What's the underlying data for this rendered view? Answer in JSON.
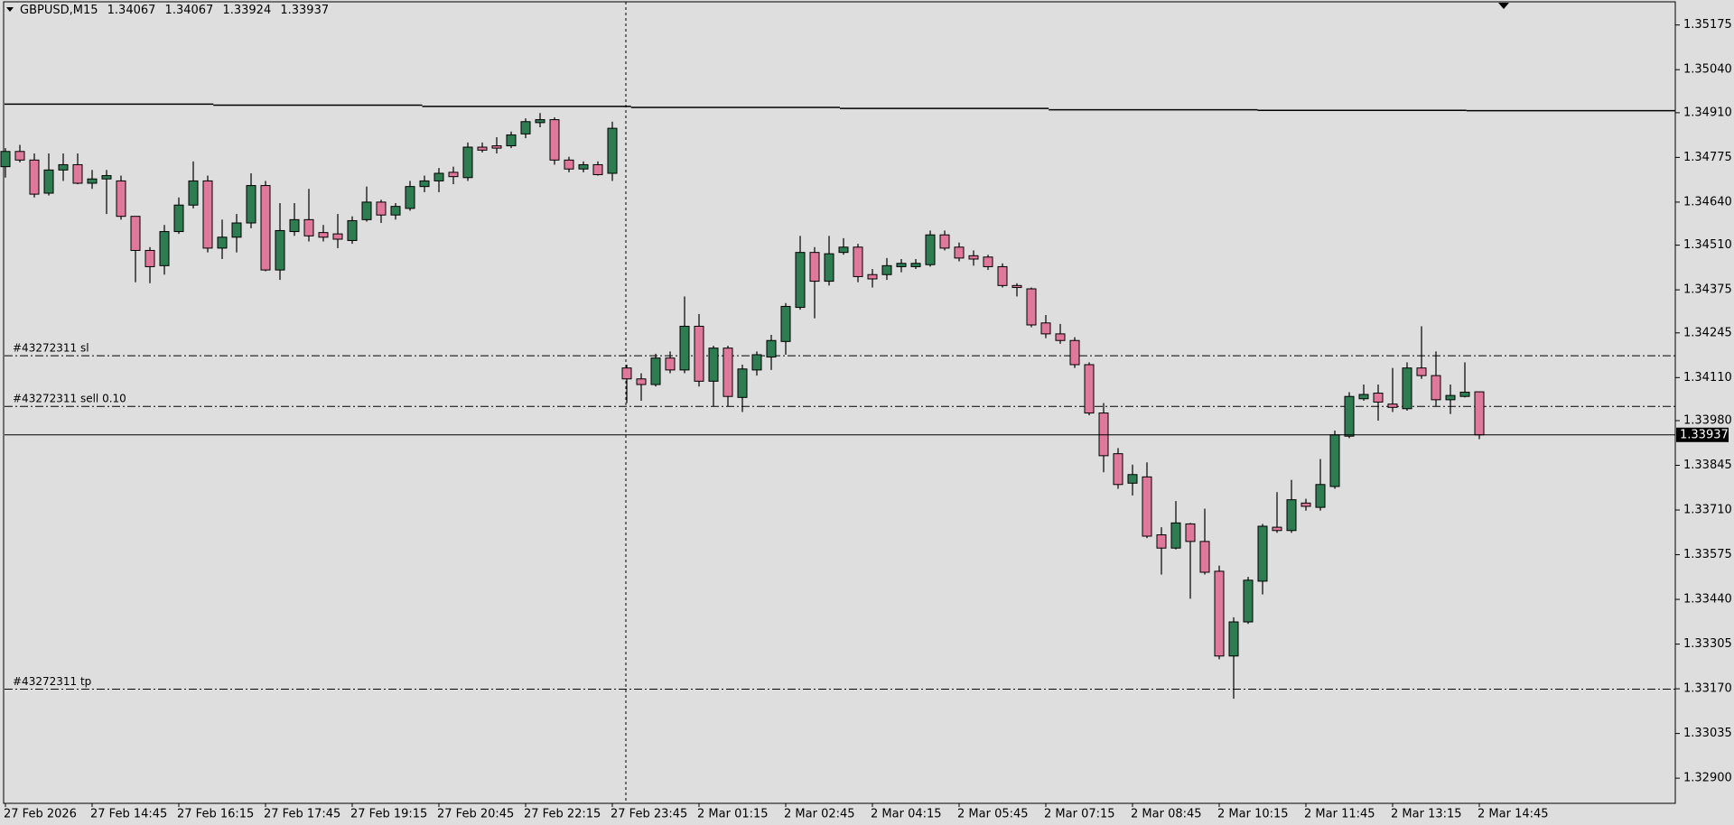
{
  "chart_data": {
    "type": "candlestick",
    "symbol": "GBPUSD,M15",
    "categories": [
      "27 Feb 2026",
      null,
      null,
      null,
      null,
      null,
      "27 Feb 14:45",
      null,
      null,
      null,
      null,
      null,
      "27 Feb 16:15",
      null,
      null,
      null,
      null,
      null,
      "27 Feb 17:45",
      null,
      null,
      null,
      null,
      null,
      "27 Feb 19:15",
      null,
      null,
      null,
      null,
      null,
      "27 Feb 20:45",
      null,
      null,
      null,
      null,
      null,
      "27 Feb 22:15",
      null,
      null,
      null,
      null,
      null,
      "27 Feb 23:45",
      null,
      null,
      null,
      null,
      null,
      "2 Mar 01:15",
      null,
      null,
      null,
      null,
      null,
      "2 Mar 02:45",
      null,
      null,
      null,
      null,
      null,
      "2 Mar 04:15",
      null,
      null,
      null,
      null,
      null,
      "2 Mar 05:45",
      null,
      null,
      null,
      null,
      null,
      "2 Mar 07:15",
      null,
      null,
      null,
      null,
      null,
      "2 Mar 08:45",
      null,
      null,
      null,
      null,
      null,
      "2 Mar 10:15",
      null,
      null,
      null,
      null,
      null,
      "2 Mar 11:45",
      null,
      null,
      null,
      null,
      null,
      "2 Mar 13:15",
      null,
      null,
      null,
      null,
      null,
      "2 Mar 14:45"
    ],
    "open": [
      1.34747,
      1.34793,
      1.34767,
      1.34667,
      1.34737,
      1.34753,
      1.34697,
      1.3471,
      1.34704,
      1.34597,
      1.34494,
      1.34448,
      1.34551,
      1.34631,
      1.34704,
      1.34501,
      1.34534,
      1.34577,
      1.3469,
      1.34435,
      1.34551,
      1.34587,
      1.34548,
      1.34544,
      1.34524,
      1.34587,
      1.3464,
      1.34601,
      1.34621,
      1.34687,
      1.34704,
      1.3473,
      1.34714,
      1.34806,
      1.3481,
      1.3481,
      1.34846,
      1.3488,
      1.34889,
      1.34767,
      1.3474,
      1.34753,
      1.34727,
      1.34139,
      1.34106,
      1.34089,
      1.34169,
      1.34133,
      1.34265,
      1.34099,
      1.34199,
      1.3405,
      1.34133,
      1.34172,
      1.34219,
      1.34322,
      1.34488,
      1.34401,
      1.34488,
      1.34504,
      1.34421,
      1.34421,
      1.34445,
      1.34445,
      1.34451,
      1.34541,
      1.34504,
      1.34478,
      1.34474,
      1.34445,
      1.34388,
      1.34378,
      1.34275,
      1.34242,
      1.34222,
      1.34149,
      1.34003,
      1.3388,
      1.33791,
      1.3381,
      1.33635,
      1.33595,
      1.33668,
      1.33615,
      1.33525,
      1.33269,
      1.33372,
      1.33495,
      1.33658,
      1.33648,
      1.33731,
      1.33718,
      1.33781,
      1.33933,
      1.34046,
      1.34063,
      1.3403,
      1.34016,
      1.34139,
      1.34116,
      1.34043,
      1.34053,
      1.34067
    ],
    "high": [
      1.34803,
      1.34813,
      1.34787,
      1.34787,
      1.34787,
      1.34787,
      1.34737,
      1.34737,
      1.3472,
      1.34597,
      1.34504,
      1.34571,
      1.34654,
      1.34763,
      1.3472,
      1.34587,
      1.34604,
      1.34727,
      1.34704,
      1.34637,
      1.34637,
      1.3468,
      1.34571,
      1.34604,
      1.34597,
      1.34687,
      1.34647,
      1.34637,
      1.34704,
      1.3472,
      1.34743,
      1.34747,
      1.3482,
      1.3482,
      1.34836,
      1.34853,
      1.34893,
      1.34909,
      1.34896,
      1.34777,
      1.34763,
      1.34763,
      1.34883,
      1.34149,
      1.34123,
      1.34182,
      1.34189,
      1.34355,
      1.34302,
      1.34206,
      1.34206,
      1.34149,
      1.34189,
      1.34239,
      1.34335,
      1.34538,
      1.34504,
      1.34538,
      1.34531,
      1.34514,
      1.34438,
      1.34471,
      1.34468,
      1.34468,
      1.34554,
      1.34554,
      1.34518,
      1.34494,
      1.34481,
      1.34455,
      1.34395,
      1.34382,
      1.34299,
      1.34272,
      1.34232,
      1.34156,
      1.34033,
      1.33897,
      1.33847,
      1.33854,
      1.33658,
      1.33737,
      1.33671,
      1.33714,
      1.33542,
      1.33386,
      1.33508,
      1.33668,
      1.33764,
      1.33801,
      1.33744,
      1.33864,
      1.3395,
      1.34066,
      1.34089,
      1.34089,
      1.34139,
      1.34156,
      1.34265,
      1.34189,
      1.34089,
      1.34156,
      1.34067
    ],
    "low": [
      1.34714,
      1.3476,
      1.34654,
      1.3466,
      1.34704,
      1.34694,
      1.3468,
      1.34604,
      1.34587,
      1.34398,
      1.34395,
      1.34421,
      1.34544,
      1.34621,
      1.34488,
      1.34468,
      1.34488,
      1.34561,
      1.34431,
      1.34405,
      1.34538,
      1.34521,
      1.34521,
      1.34501,
      1.34514,
      1.34581,
      1.34577,
      1.34587,
      1.34614,
      1.3467,
      1.3467,
      1.34694,
      1.34704,
      1.3479,
      1.34787,
      1.34803,
      1.34833,
      1.34866,
      1.34753,
      1.3473,
      1.3473,
      1.3472,
      1.34704,
      1.34033,
      1.3404,
      1.34083,
      1.34123,
      1.34123,
      1.34083,
      1.34023,
      1.34023,
      1.34006,
      1.34116,
      1.34133,
      1.34179,
      1.34315,
      1.34289,
      1.34388,
      1.34481,
      1.34398,
      1.34382,
      1.34405,
      1.34428,
      1.34438,
      1.34445,
      1.34494,
      1.34461,
      1.34448,
      1.34435,
      1.34382,
      1.34355,
      1.34262,
      1.34229,
      1.34212,
      1.34139,
      1.33996,
      1.33824,
      1.33774,
      1.33754,
      1.33625,
      1.33515,
      1.33591,
      1.33442,
      1.33515,
      1.33259,
      1.3314,
      1.33366,
      1.33455,
      1.33641,
      1.33641,
      1.33708,
      1.33708,
      1.33774,
      1.33927,
      1.3404,
      1.3398,
      1.34006,
      1.3401,
      1.34106,
      1.34023,
      1.34,
      1.3405,
      1.33924
    ],
    "close": [
      1.34793,
      1.34767,
      1.34664,
      1.34737,
      1.34753,
      1.34697,
      1.3471,
      1.3472,
      1.34597,
      1.34494,
      1.34445,
      1.34551,
      1.34631,
      1.34704,
      1.34501,
      1.34534,
      1.34577,
      1.3469,
      1.34435,
      1.34554,
      1.34587,
      1.34538,
      1.34534,
      1.34528,
      1.34584,
      1.3464,
      1.34601,
      1.34627,
      1.34687,
      1.34704,
      1.34727,
      1.34717,
      1.34806,
      1.34797,
      1.34803,
      1.34843,
      1.34883,
      1.34889,
      1.34767,
      1.3474,
      1.34753,
      1.34723,
      1.34863,
      1.34106,
      1.34089,
      1.34169,
      1.34133,
      1.34265,
      1.34099,
      1.34199,
      1.34053,
      1.34136,
      1.34179,
      1.34222,
      1.34325,
      1.34488,
      1.34401,
      1.34484,
      1.34504,
      1.34415,
      1.34408,
      1.34448,
      1.34455,
      1.34455,
      1.34541,
      1.34501,
      1.34471,
      1.34468,
      1.34445,
      1.34388,
      1.34382,
      1.34269,
      1.34242,
      1.34222,
      1.34149,
      1.34003,
      1.33874,
      1.33787,
      1.33817,
      1.33631,
      1.33595,
      1.33671,
      1.33615,
      1.33522,
      1.33269,
      1.33372,
      1.33498,
      1.33661,
      1.33648,
      1.33741,
      1.33721,
      1.33787,
      1.33937,
      1.34053,
      1.34059,
      1.34036,
      1.3402,
      1.34139,
      1.34116,
      1.34043,
      1.34056,
      1.34066,
      1.33937
    ],
    "up_color": "#2e7d52",
    "down_color": "#e0789c",
    "ylim": [
      1.32824,
      1.35245
    ],
    "yticks": [
      1.35175,
      {
        "value": 1.3504,
        "label": "1.35040"
      },
      {
        "value": 1.3491,
        "label": "1.34910"
      },
      1.34775,
      {
        "value": 1.3464,
        "label": "1.34640"
      },
      {
        "value": 1.3451,
        "label": "1.34510"
      },
      1.34375,
      1.34245,
      {
        "value": 1.3411,
        "label": "1.34110"
      },
      {
        "value": 1.3398,
        "label": "1.33980"
      },
      1.33845,
      {
        "value": 1.3371,
        "label": "1.33710"
      },
      1.33575,
      {
        "value": 1.3344,
        "label": "1.33440"
      },
      1.33305,
      {
        "value": 1.3317,
        "label": "1.33170"
      },
      1.33035,
      {
        "value": 1.329,
        "label": "1.32900"
      }
    ],
    "overlay": {
      "color": "#000000",
      "values": [
        1.34936,
        1.34933,
        1.34929,
        1.34926,
        1.34923,
        1.34919,
        1.34917,
        1.34916
      ]
    },
    "levels": [
      {
        "label": "#43272311 sl",
        "value": 1.34176
      },
      {
        "label": "#43272311 sell 0.10",
        "value": 1.34023
      },
      {
        "label": "#43272311 tp",
        "value": 1.33169
      }
    ],
    "grid": false
  }
}
